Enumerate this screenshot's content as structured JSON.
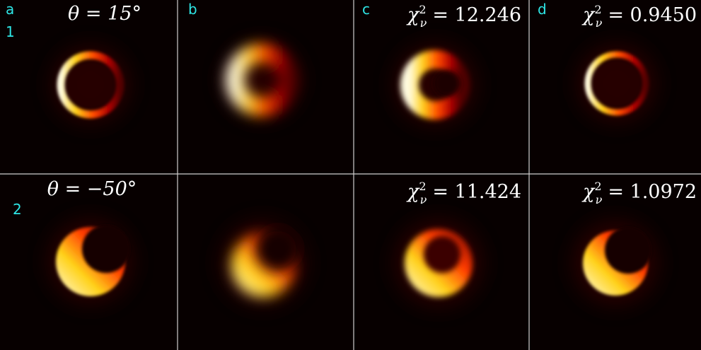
{
  "labels": {
    "columns": [
      "a",
      "b",
      "c",
      "d"
    ],
    "rows": [
      "1",
      "2"
    ]
  },
  "angles": [
    "θ = 15°",
    "θ = −50°"
  ],
  "fits": [
    {
      "symbol": "χ",
      "sup": "2",
      "sub": "ν",
      "text": "= 12.246"
    },
    {
      "symbol": "χ",
      "sup": "2",
      "sub": "ν",
      "text": "= 0.9450"
    },
    {
      "symbol": "χ",
      "sup": "2",
      "sub": "ν",
      "text": "= 11.424"
    },
    {
      "symbol": "χ",
      "sup": "2",
      "sub": "ν",
      "text": "= 1.0972"
    }
  ]
}
